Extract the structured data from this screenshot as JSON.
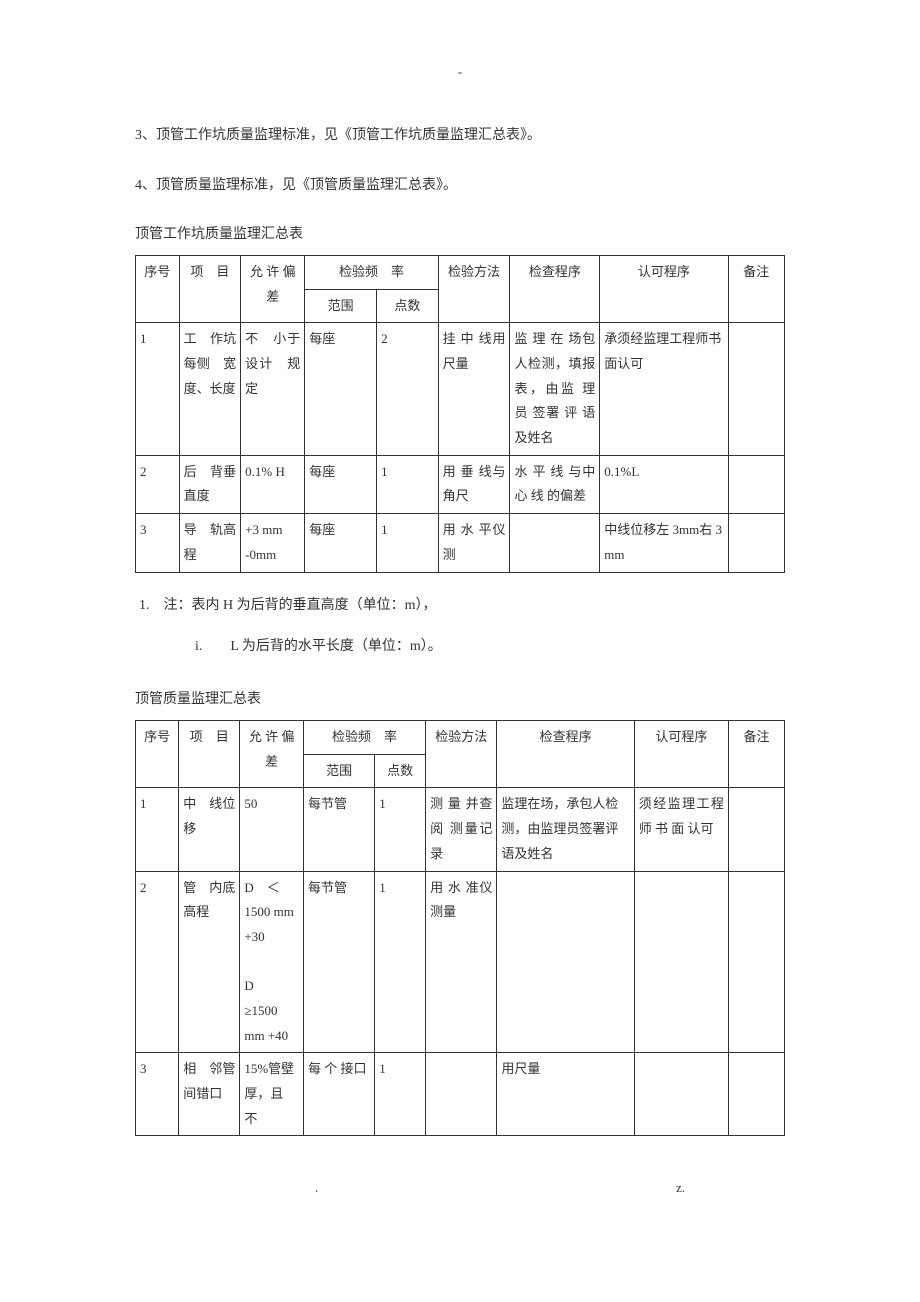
{
  "top_dash": "-",
  "para_3": "3、顶管工作坑质量监理标准，见《顶管工作坑质量监理汇总表》。",
  "para_4": "4、顶管质量监理标准，见《顶管质量监理汇总表》。",
  "table1_title": "顶管工作坑质量监理汇总表",
  "table1": {
    "header": {
      "seq": "序号",
      "item": "项　目",
      "tolerance": "允 许 偏 差",
      "freq_group": "检验频　率",
      "range": "范围",
      "count": "点数",
      "method": "检验方法",
      "check": "检查程序",
      "approve": "认可程序",
      "remark": "备注"
    },
    "rows": [
      {
        "seq": "1",
        "item": "工　作坑　每侧　宽度、长度",
        "tol": "不　小于　设计　规定",
        "range": "每座",
        "count": "2",
        "method": "挂 中 线用尺量",
        "check": "监 理 在 场包人检测，填报表，由监 理 员 签署 评 语 及姓名",
        "approve": "承须经监理工程师书面认可",
        "remark": ""
      },
      {
        "seq": "2",
        "item": "后　背垂　直度",
        "tol": "0.1% H",
        "range": "每座",
        "count": "1",
        "method": "用 垂 线与角尺",
        "check": "水 平 线 与中 心 线 的偏差",
        "approve": "0.1%L",
        "remark": ""
      },
      {
        "seq": "3",
        "item": "导　轨高　程",
        "tol": "+3 mm -0mm",
        "range": "每座",
        "count": "1",
        "method": "用 水 平仪测",
        "check": "",
        "approve": "中线位移左 3mm右 3 mm",
        "remark": ""
      }
    ]
  },
  "note_1": "1.　注：表内 H 为后背的垂直高度（单位：m），",
  "note_1_sub": "i.　　L 为后背的水平长度（单位：m）。",
  "table2_title": "顶管质量监理汇总表",
  "table2": {
    "header": {
      "seq": "序号",
      "item": "项　目",
      "tolerance": "允 许 偏 差",
      "freq_group": "检验频　率",
      "range": "范围",
      "count": "点数",
      "method": "检验方法",
      "check": "检查程序",
      "approve": "认可程序",
      "remark": "备注"
    },
    "rows": [
      {
        "seq": "1",
        "item": "中　线位移",
        "tol": "50",
        "range": "每节管",
        "count": "1",
        "method": "测 量 并查 阅 测量记录",
        "check": "监理在场，承包人检测，由监理员签署评语及姓名",
        "approve": "须经监理工程 师 书 面 认可",
        "remark": ""
      },
      {
        "seq": "2",
        "item": "管　内底　高程",
        "tol": "D　＜1500 mm　+30\n\nD　≥1500 mm +40",
        "range": "每节管",
        "count": "1",
        "method": "用 水 准仪测量",
        "check": "",
        "approve": "",
        "remark": ""
      },
      {
        "seq": "3",
        "item": "相　邻管　间错口",
        "tol": "15%管壁厚，且　不",
        "range": "每 个 接口",
        "count": "1",
        "method": "",
        "check": "用尺量",
        "approve": "",
        "remark": ""
      }
    ]
  },
  "footer_dot": ".",
  "footer_z": "z."
}
